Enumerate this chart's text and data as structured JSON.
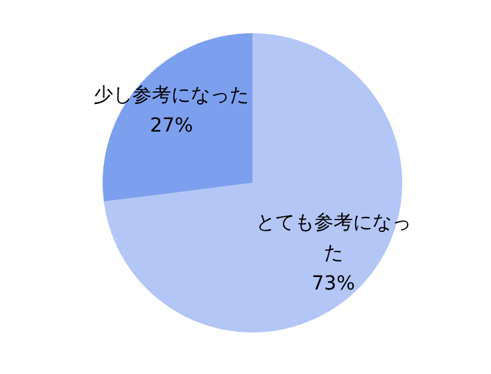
{
  "chart_data": {
    "type": "pie",
    "categories": [
      "とても参考になった",
      "少し参考になった"
    ],
    "values": [
      73,
      27
    ],
    "colors": [
      "#b4c6f6",
      "#7da0ee"
    ],
    "value_labels": [
      "73%",
      "27%"
    ],
    "legend": false
  }
}
